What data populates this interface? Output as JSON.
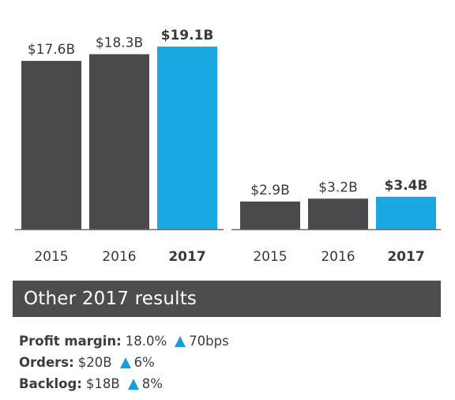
{
  "colors": {
    "bar": "#4a4a4c",
    "highlight": "#1aa8e3",
    "text": "#3a3a3c",
    "banner": "#4d4d4f",
    "up_arrow": "#1a9ed9"
  },
  "chart_data": [
    {
      "type": "bar",
      "categories": [
        "2015",
        "2016",
        "2017"
      ],
      "values": [
        17.6,
        18.3,
        19.1
      ],
      "value_labels": [
        "$17.6B",
        "$18.3B",
        "$19.1B"
      ],
      "highlight_index": 2,
      "ylim": [
        0,
        20
      ]
    },
    {
      "type": "bar",
      "categories": [
        "2015",
        "2016",
        "2017"
      ],
      "values": [
        2.9,
        3.2,
        3.4
      ],
      "value_labels": [
        "$2.9B",
        "$3.2B",
        "$3.4B"
      ],
      "highlight_index": 2,
      "ylim": [
        0,
        20
      ]
    }
  ],
  "results": {
    "title": "Other 2017 results",
    "items": [
      {
        "label": "Profit margin:",
        "value": "18.0%",
        "change": "70bps"
      },
      {
        "label": "Orders:",
        "value": "$20B",
        "change": "6%"
      },
      {
        "label": "Backlog:",
        "value": "$18B",
        "change": "8%"
      }
    ]
  }
}
